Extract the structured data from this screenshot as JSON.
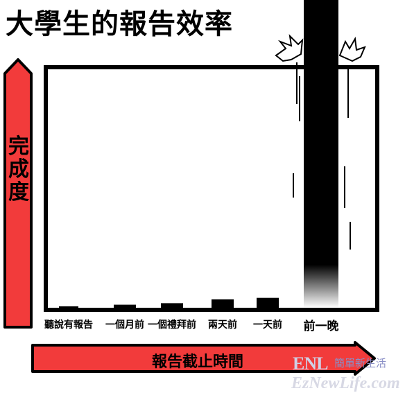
{
  "title": "大學生的報告效率",
  "chart_data": {
    "type": "bar",
    "title": "大學生的報告效率",
    "ylabel": "完成度",
    "xlabel": "報告截止時間",
    "categories": [
      "聽說有報告",
      "一個月前",
      "一個禮拜前",
      "兩天前",
      "一天前",
      "前一晚"
    ],
    "values": [
      0.5,
      2,
      3,
      5.5,
      6.5,
      100
    ],
    "ylim": [
      0,
      100
    ],
    "grid": false,
    "legend": "none"
  },
  "watermark": {
    "logo": "ENL",
    "logo_cn": "簡單新生活",
    "site": "EzNewLife.com"
  },
  "colors": {
    "arrow_fill": "#f23b3b",
    "bar_fill": "#000000",
    "frame": "#000000"
  }
}
